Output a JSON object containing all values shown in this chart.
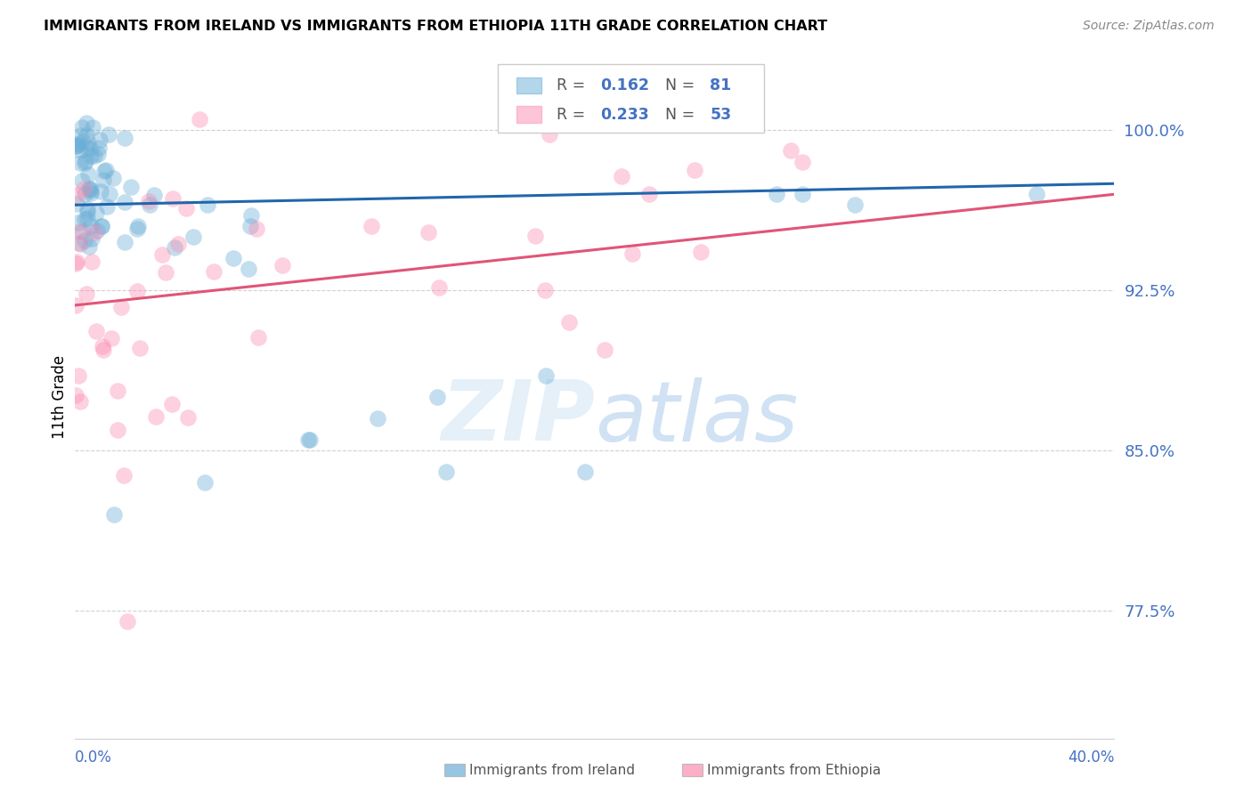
{
  "title": "IMMIGRANTS FROM IRELAND VS IMMIGRANTS FROM ETHIOPIA 11TH GRADE CORRELATION CHART",
  "source": "Source: ZipAtlas.com",
  "ylabel": "11th Grade",
  "xlim": [
    0.0,
    0.4
  ],
  "ylim": [
    0.715,
    1.035
  ],
  "ireland_R": 0.162,
  "ireland_N": 81,
  "ethiopia_R": 0.233,
  "ethiopia_N": 53,
  "ireland_color": "#6baed6",
  "ethiopia_color": "#fc8db0",
  "ireland_line_color": "#2166ac",
  "ethiopia_line_color": "#e05577",
  "ytick_vals": [
    0.775,
    0.85,
    0.925,
    1.0
  ],
  "ytick_labels": [
    "77.5%",
    "85.0%",
    "92.5%",
    "100.0%"
  ],
  "ireland_trend_x0": 0.0,
  "ireland_trend_y0": 0.965,
  "ireland_trend_x1": 0.4,
  "ireland_trend_y1": 0.975,
  "ethiopia_trend_x0": 0.0,
  "ethiopia_trend_y0": 0.918,
  "ethiopia_trend_x1": 0.4,
  "ethiopia_trend_y1": 0.97
}
